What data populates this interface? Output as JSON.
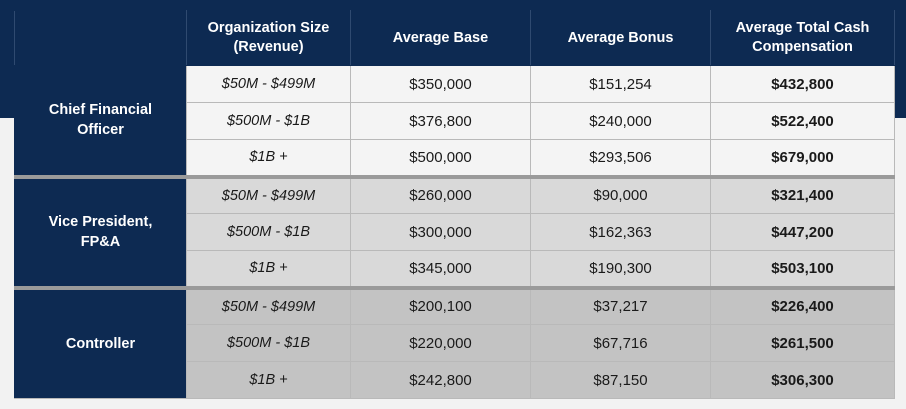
{
  "headers": {
    "org_size": "Organization Size\n(Revenue)",
    "avg_base": "Average Base",
    "avg_bonus": "Average Bonus",
    "avg_total": "Average Total Cash\nCompensation"
  },
  "groups": [
    {
      "role": "Chief Financial\nOfficer",
      "rows": [
        {
          "size": "$50M - $499M",
          "base": "$350,000",
          "bonus": "$151,254",
          "total": "$432,800"
        },
        {
          "size": "$500M - $1B",
          "base": "$376,800",
          "bonus": "$240,000",
          "total": "$522,400"
        },
        {
          "size": "$1B +",
          "base": "$500,000",
          "bonus": "$293,506",
          "total": "$679,000"
        }
      ]
    },
    {
      "role": "Vice President,\nFP&A",
      "rows": [
        {
          "size": "$50M - $499M",
          "base": "$260,000",
          "bonus": "$90,000",
          "total": "$321,400"
        },
        {
          "size": "$500M - $1B",
          "base": "$300,000",
          "bonus": "$162,363",
          "total": "$447,200"
        },
        {
          "size": "$1B +",
          "base": "$345,000",
          "bonus": "$190,300",
          "total": "$503,100"
        }
      ]
    },
    {
      "role": "Controller",
      "rows": [
        {
          "size": "$50M - $499M",
          "base": "$200,100",
          "bonus": "$37,217",
          "total": "$226,400"
        },
        {
          "size": "$500M - $1B",
          "base": "$220,000",
          "bonus": "$67,716",
          "total": "$261,500"
        },
        {
          "size": "$1B +",
          "base": "$242,800",
          "bonus": "$87,150",
          "total": "$306,300"
        }
      ]
    }
  ],
  "colors": {
    "navy": "#0d2a52",
    "group1_bg": "#f4f4f4",
    "group2_bg": "#d9d9d9",
    "group3_bg": "#c3c3c3"
  }
}
